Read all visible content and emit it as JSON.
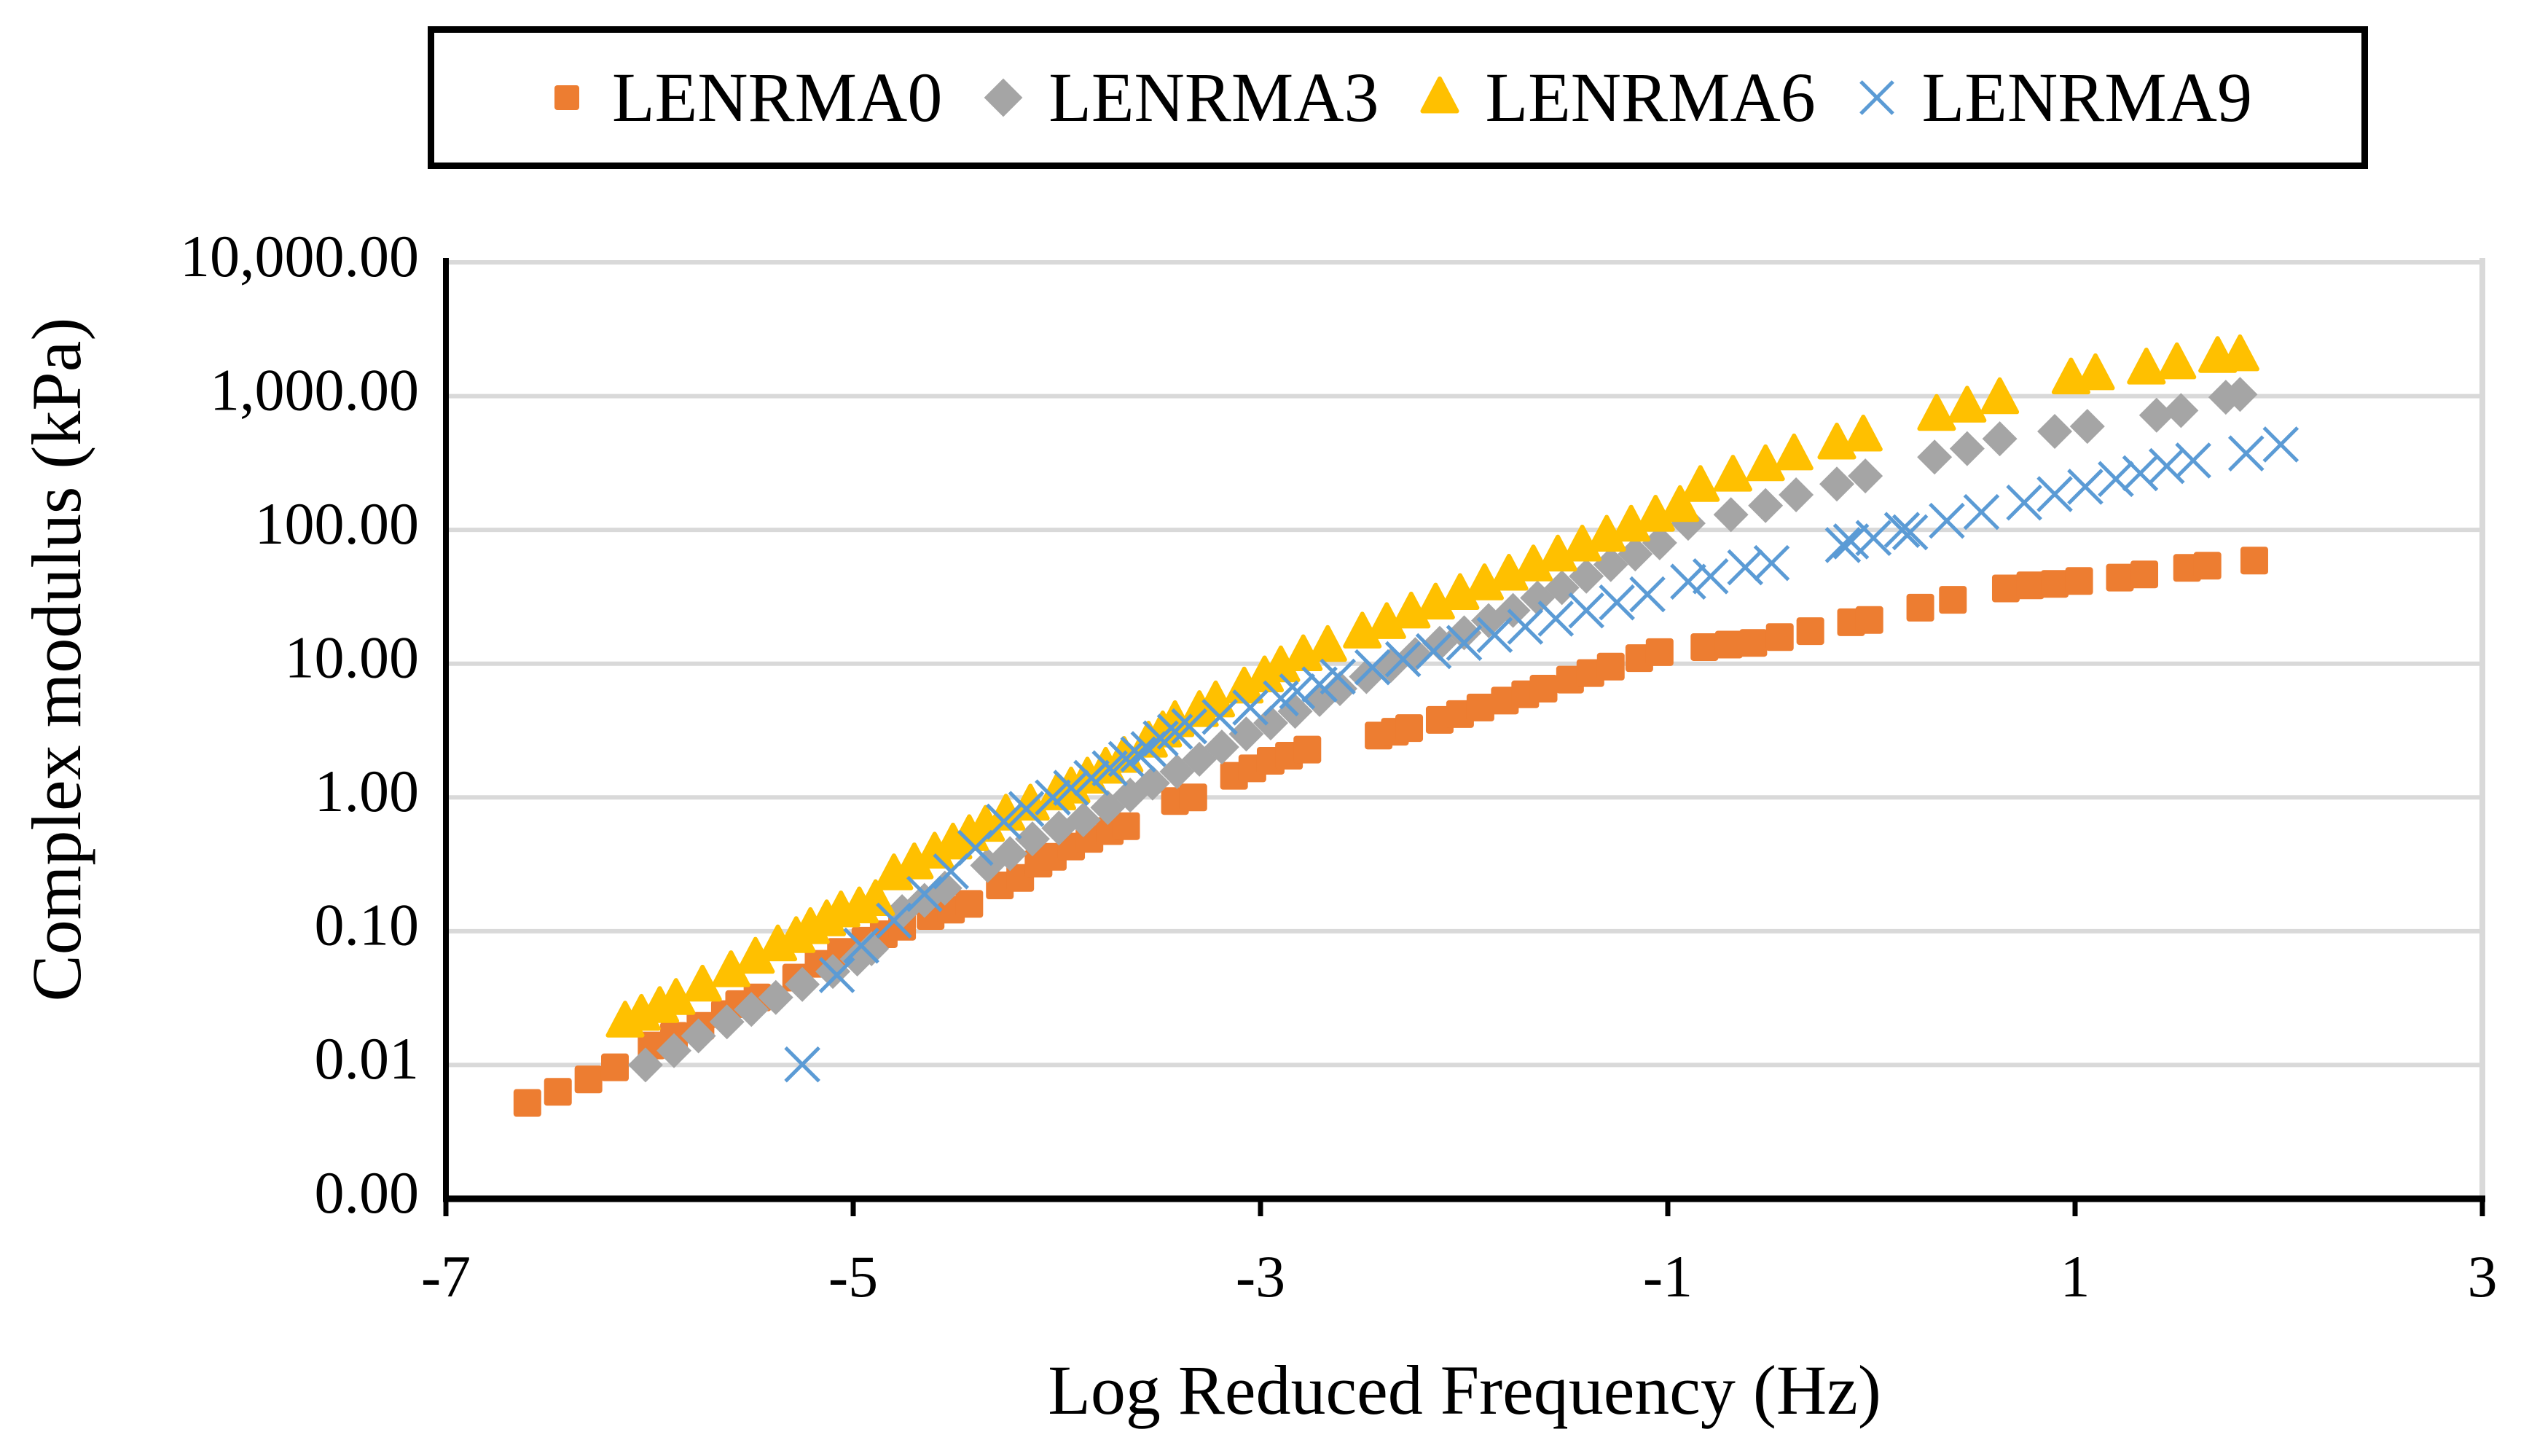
{
  "legend": {
    "border_color": "#000000",
    "items": [
      {
        "label": "LENRMA0",
        "marker": "square",
        "color": "#ED7D31"
      },
      {
        "label": "LENRMA3",
        "marker": "diamond",
        "color": "#A5A5A5"
      },
      {
        "label": "LENRMA6",
        "marker": "triangle",
        "color": "#FFC000"
      },
      {
        "label": "LENRMA9",
        "marker": "x",
        "color": "#5B9BD5"
      }
    ]
  },
  "chart_data": {
    "type": "scatter",
    "title": "",
    "xlabel": "Log Reduced Frequency (Hz)",
    "ylabel": "Complex modulus (kPa)",
    "xlim": [
      -7,
      3
    ],
    "x_tick_values": [
      -7,
      -5,
      -3,
      -1,
      1,
      3
    ],
    "x_tick_labels": [
      "-7",
      "-5",
      "-3",
      "-1",
      "1",
      "3"
    ],
    "y_scale": "log",
    "ylim": [
      0.001,
      10000
    ],
    "y_tick_values": [
      10000,
      1000,
      100,
      10,
      1,
      0.1,
      0.01,
      0.001
    ],
    "y_tick_labels": [
      "10,000.00",
      "1,000.00",
      "100.00",
      "10.00",
      "1.00",
      "0.10",
      "0.01",
      "0.00"
    ],
    "grid": "horizontal",
    "gridline_color": "#d9d9d9",
    "axis_color": "#000000",
    "legend_position": "top",
    "series": [
      {
        "name": "LENRMA0",
        "marker": "square",
        "color": "#ED7D31",
        "points": [
          [
            -6.6,
            0.0052
          ],
          [
            -6.45,
            0.0063
          ],
          [
            -6.3,
            0.0078
          ],
          [
            -6.17,
            0.0096
          ],
          [
            -5.99,
            0.014
          ],
          [
            -5.88,
            0.0165
          ],
          [
            -5.75,
            0.0196
          ],
          [
            -5.63,
            0.024
          ],
          [
            -5.56,
            0.0285
          ],
          [
            -5.47,
            0.032
          ],
          [
            -5.28,
            0.045
          ],
          [
            -5.17,
            0.057
          ],
          [
            -5.06,
            0.07
          ],
          [
            -4.94,
            0.085
          ],
          [
            -4.85,
            0.095
          ],
          [
            -4.76,
            0.108
          ],
          [
            -4.62,
            0.13
          ],
          [
            -4.52,
            0.145
          ],
          [
            -4.43,
            0.16
          ],
          [
            -4.28,
            0.22
          ],
          [
            -4.18,
            0.25
          ],
          [
            -4.09,
            0.32
          ],
          [
            -4.02,
            0.36
          ],
          [
            -3.93,
            0.43
          ],
          [
            -3.84,
            0.49
          ],
          [
            -3.74,
            0.56
          ],
          [
            -3.66,
            0.61
          ],
          [
            -3.42,
            0.94
          ],
          [
            -3.33,
            1.0
          ],
          [
            -3.13,
            1.45
          ],
          [
            -3.04,
            1.65
          ],
          [
            -2.95,
            1.88
          ],
          [
            -2.86,
            2.05
          ],
          [
            -2.77,
            2.28
          ],
          [
            -2.42,
            2.9
          ],
          [
            -2.34,
            3.1
          ],
          [
            -2.27,
            3.3
          ],
          [
            -2.12,
            3.8
          ],
          [
            -2.02,
            4.2
          ],
          [
            -1.92,
            4.7
          ],
          [
            -1.8,
            5.3
          ],
          [
            -1.7,
            5.9
          ],
          [
            -1.61,
            6.5
          ],
          [
            -1.48,
            7.6
          ],
          [
            -1.38,
            8.5
          ],
          [
            -1.28,
            9.5
          ],
          [
            -1.14,
            11.0
          ],
          [
            -1.04,
            12.2
          ],
          [
            -0.82,
            13.3
          ],
          [
            -0.7,
            13.9
          ],
          [
            -0.58,
            14.3
          ],
          [
            -0.45,
            15.8
          ],
          [
            -0.3,
            17.5
          ],
          [
            -0.1,
            20.4
          ],
          [
            -0.01,
            21.2
          ],
          [
            0.24,
            26.2
          ],
          [
            0.4,
            30.0
          ],
          [
            0.66,
            36.5
          ],
          [
            0.78,
            38.5
          ],
          [
            0.9,
            39.5
          ],
          [
            1.02,
            41.5
          ],
          [
            1.22,
            44
          ],
          [
            1.34,
            46.5
          ],
          [
            1.55,
            52
          ],
          [
            1.65,
            54
          ],
          [
            1.88,
            59
          ]
        ]
      },
      {
        "name": "LENRMA3",
        "marker": "diamond",
        "color": "#A5A5A5",
        "points": [
          [
            -6.02,
            0.01
          ],
          [
            -5.88,
            0.0128
          ],
          [
            -5.76,
            0.0165
          ],
          [
            -5.62,
            0.021
          ],
          [
            -5.5,
            0.026
          ],
          [
            -5.38,
            0.032
          ],
          [
            -5.25,
            0.04
          ],
          [
            -5.1,
            0.05
          ],
          [
            -4.98,
            0.062
          ],
          [
            -4.91,
            0.074
          ],
          [
            -4.76,
            0.14
          ],
          [
            -4.65,
            0.17
          ],
          [
            -4.55,
            0.21
          ],
          [
            -4.34,
            0.31
          ],
          [
            -4.23,
            0.38
          ],
          [
            -4.12,
            0.49
          ],
          [
            -3.99,
            0.59
          ],
          [
            -3.87,
            0.68
          ],
          [
            -3.75,
            0.84
          ],
          [
            -3.64,
            1.04
          ],
          [
            -3.53,
            1.28
          ],
          [
            -3.41,
            1.56
          ],
          [
            -3.3,
            1.93
          ],
          [
            -3.19,
            2.38
          ],
          [
            -3.07,
            2.98
          ],
          [
            -2.95,
            3.6
          ],
          [
            -2.83,
            4.4
          ],
          [
            -2.71,
            5.4
          ],
          [
            -2.61,
            6.5
          ],
          [
            -2.48,
            8.0
          ],
          [
            -2.36,
            9.7
          ],
          [
            -2.24,
            11.7
          ],
          [
            -2.12,
            14.2
          ],
          [
            -2.0,
            17
          ],
          [
            -1.88,
            21
          ],
          [
            -1.76,
            25
          ],
          [
            -1.64,
            31
          ],
          [
            -1.52,
            37
          ],
          [
            -1.4,
            45
          ],
          [
            -1.28,
            55
          ],
          [
            -1.16,
            66
          ],
          [
            -1.04,
            80
          ],
          [
            -0.9,
            112
          ],
          [
            -0.69,
            130
          ],
          [
            -0.52,
            152
          ],
          [
            -0.37,
            183
          ],
          [
            -0.17,
            220
          ],
          [
            -0.03,
            253
          ],
          [
            0.31,
            350
          ],
          [
            0.47,
            405
          ],
          [
            0.63,
            480
          ],
          [
            0.9,
            545
          ],
          [
            1.06,
            594
          ],
          [
            1.4,
            720
          ],
          [
            1.52,
            780
          ],
          [
            1.74,
            980
          ],
          [
            1.81,
            1030
          ]
        ]
      },
      {
        "name": "LENRMA6",
        "marker": "triangle",
        "color": "#FFC000",
        "points": [
          [
            -6.12,
            0.021
          ],
          [
            -6.04,
            0.0236
          ],
          [
            -5.95,
            0.027
          ],
          [
            -5.87,
            0.031
          ],
          [
            -5.74,
            0.039
          ],
          [
            -5.6,
            0.05
          ],
          [
            -5.48,
            0.063
          ],
          [
            -5.37,
            0.078
          ],
          [
            -5.28,
            0.09
          ],
          [
            -5.21,
            0.105
          ],
          [
            -5.13,
            0.12
          ],
          [
            -5.06,
            0.14
          ],
          [
            -4.97,
            0.15
          ],
          [
            -4.89,
            0.17
          ],
          [
            -4.8,
            0.265
          ],
          [
            -4.7,
            0.32
          ],
          [
            -4.6,
            0.385
          ],
          [
            -4.51,
            0.45
          ],
          [
            -4.43,
            0.52
          ],
          [
            -4.35,
            0.61
          ],
          [
            -4.25,
            0.74
          ],
          [
            -4.13,
            0.88
          ],
          [
            -4.0,
            1.05
          ],
          [
            -3.93,
            1.18
          ],
          [
            -3.85,
            1.4
          ],
          [
            -3.76,
            1.66
          ],
          [
            -3.67,
            2.0
          ],
          [
            -3.55,
            2.6
          ],
          [
            -3.48,
            3.1
          ],
          [
            -3.42,
            3.7
          ],
          [
            -3.3,
            4.4
          ],
          [
            -3.22,
            5.2
          ],
          [
            -3.08,
            6.6
          ],
          [
            -2.98,
            8.0
          ],
          [
            -2.9,
            9.5
          ],
          [
            -2.79,
            11.5
          ],
          [
            -2.67,
            13.5
          ],
          [
            -2.5,
            17
          ],
          [
            -2.38,
            20
          ],
          [
            -2.26,
            24
          ],
          [
            -2.14,
            28
          ],
          [
            -2.02,
            33
          ],
          [
            -1.9,
            39
          ],
          [
            -1.78,
            46
          ],
          [
            -1.66,
            54
          ],
          [
            -1.54,
            64
          ],
          [
            -1.42,
            76
          ],
          [
            -1.3,
            90
          ],
          [
            -1.18,
            107
          ],
          [
            -1.06,
            127
          ],
          [
            -0.94,
            150
          ],
          [
            -0.84,
            212
          ],
          [
            -0.68,
            253
          ],
          [
            -0.52,
            303
          ],
          [
            -0.38,
            365
          ],
          [
            -0.17,
            440
          ],
          [
            -0.04,
            505
          ],
          [
            0.32,
            720
          ],
          [
            0.47,
            830
          ],
          [
            0.63,
            960
          ],
          [
            0.98,
            1350
          ],
          [
            1.1,
            1450
          ],
          [
            1.35,
            1600
          ],
          [
            1.5,
            1750
          ],
          [
            1.7,
            1950
          ],
          [
            1.81,
            2010
          ]
        ]
      },
      {
        "name": "LENRMA9",
        "marker": "x",
        "color": "#5B9BD5",
        "points": [
          [
            -5.25,
            0.0101
          ],
          [
            -5.08,
            0.047
          ],
          [
            -4.96,
            0.078
          ],
          [
            -4.8,
            0.12
          ],
          [
            -4.65,
            0.19
          ],
          [
            -4.52,
            0.28
          ],
          [
            -4.4,
            0.42
          ],
          [
            -4.26,
            0.66
          ],
          [
            -4.15,
            0.82
          ],
          [
            -4.02,
            1.0
          ],
          [
            -3.93,
            1.18
          ],
          [
            -3.83,
            1.4
          ],
          [
            -3.74,
            1.65
          ],
          [
            -3.66,
            1.94
          ],
          [
            -3.6,
            2.1
          ],
          [
            -3.55,
            2.3
          ],
          [
            -3.49,
            2.76
          ],
          [
            -3.42,
            3.1
          ],
          [
            -3.35,
            3.4
          ],
          [
            -3.2,
            4.0
          ],
          [
            -3.05,
            4.7
          ],
          [
            -2.9,
            5.5
          ],
          [
            -2.82,
            6.2
          ],
          [
            -2.71,
            7.0
          ],
          [
            -2.62,
            8.0
          ],
          [
            -2.45,
            9.4
          ],
          [
            -2.3,
            10.8
          ],
          [
            -2.15,
            12.4
          ],
          [
            -2.0,
            14.3
          ],
          [
            -1.85,
            16.4
          ],
          [
            -1.7,
            18.9
          ],
          [
            -1.55,
            21.7
          ],
          [
            -1.4,
            25
          ],
          [
            -1.25,
            28.7
          ],
          [
            -1.1,
            33
          ],
          [
            -0.9,
            41
          ],
          [
            -0.79,
            45
          ],
          [
            -0.62,
            52.5
          ],
          [
            -0.49,
            56.5
          ],
          [
            -0.14,
            77
          ],
          [
            -0.1,
            82
          ],
          [
            0.01,
            87
          ],
          [
            0.15,
            100
          ],
          [
            0.19,
            96
          ],
          [
            0.37,
            117
          ],
          [
            0.54,
            136
          ],
          [
            0.75,
            160
          ],
          [
            0.9,
            185
          ],
          [
            1.05,
            210
          ],
          [
            1.2,
            240
          ],
          [
            1.32,
            265
          ],
          [
            1.45,
            300
          ],
          [
            1.58,
            330
          ],
          [
            1.84,
            373
          ],
          [
            2.01,
            435
          ]
        ]
      }
    ]
  }
}
